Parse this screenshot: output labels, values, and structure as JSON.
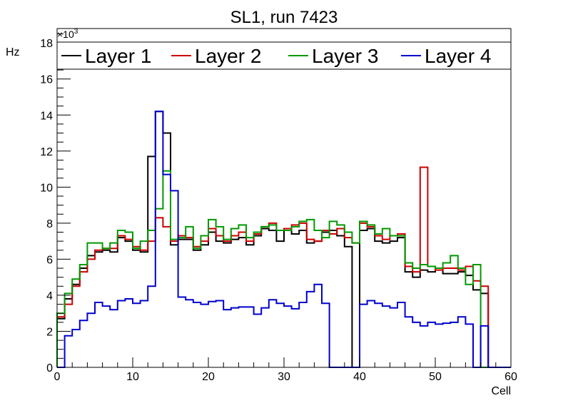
{
  "chart_data": {
    "type": "line",
    "title": "SL1, run 7423",
    "xlabel": "Cell",
    "ylabel": "Hz",
    "y_multiplier": "×10",
    "y_multiplier_exponent": "3",
    "xlim": [
      0,
      60
    ],
    "ylim": [
      0,
      18.8
    ],
    "x_ticks": [
      0,
      10,
      20,
      30,
      40,
      50,
      60
    ],
    "x_tick_labels": [
      "0",
      "10",
      "20",
      "30",
      "40",
      "50",
      "60"
    ],
    "y_ticks": [
      0,
      2,
      4,
      6,
      8,
      10,
      12,
      14,
      16,
      18
    ],
    "y_tick_labels": [
      "0",
      "2",
      "4",
      "6",
      "8",
      "10",
      "12",
      "14",
      "16",
      "18"
    ],
    "grid": false,
    "legend_position": "top",
    "bins": {
      "start": 0,
      "width": 1,
      "count": 60
    },
    "series": [
      {
        "name": "Layer 1",
        "color": "#000000",
        "values": [
          2.7,
          3.8,
          4.6,
          5.5,
          6.2,
          6.4,
          6.5,
          6.4,
          7.2,
          7.0,
          6.5,
          6.4,
          11.7,
          14.2,
          13.0,
          6.8,
          7.1,
          7.1,
          6.5,
          6.8,
          7.5,
          7.0,
          6.9,
          7.1,
          7.2,
          6.8,
          7.3,
          7.7,
          7.6,
          7.0,
          7.6,
          7.4,
          7.6,
          6.9,
          7.0,
          7.5,
          7.6,
          7.3,
          6.7,
          0,
          7.6,
          7.7,
          7.0,
          6.9,
          7.0,
          7.2,
          5.3,
          5.0,
          5.4,
          5.3,
          5.5,
          5.2,
          5.2,
          5.3,
          5.1,
          4.3,
          4.1,
          0,
          0,
          0
        ]
      },
      {
        "name": "Layer 2",
        "color": "#cc0000",
        "values": [
          2.8,
          3.5,
          4.5,
          5.3,
          6.0,
          6.5,
          6.6,
          6.6,
          7.3,
          7.1,
          6.7,
          6.5,
          7.0,
          8.3,
          7.8,
          7.0,
          7.3,
          7.2,
          6.7,
          7.0,
          7.7,
          7.3,
          7.0,
          7.3,
          7.5,
          7.0,
          7.4,
          7.8,
          8.0,
          7.6,
          7.7,
          7.9,
          8.0,
          7.1,
          7.0,
          7.6,
          7.4,
          7.7,
          7.2,
          6.9,
          8.0,
          7.8,
          7.3,
          7.1,
          7.3,
          7.4,
          5.6,
          5.3,
          11.1,
          5.6,
          5.4,
          5.5,
          5.5,
          5.4,
          5.6,
          4.8,
          4.5,
          0,
          0,
          0
        ]
      },
      {
        "name": "Layer 3",
        "color": "#009900",
        "values": [
          3.0,
          4.1,
          4.9,
          5.7,
          6.9,
          6.9,
          6.6,
          6.9,
          7.6,
          7.5,
          6.6,
          7.0,
          7.6,
          8.8,
          10.9,
          7.1,
          7.2,
          7.8,
          6.6,
          7.3,
          8.2,
          7.8,
          7.1,
          7.7,
          7.9,
          7.2,
          7.5,
          7.8,
          7.9,
          7.6,
          7.6,
          7.8,
          8.1,
          8.2,
          7.6,
          7.2,
          8.1,
          7.9,
          7.5,
          6.9,
          8.1,
          7.9,
          7.4,
          7.7,
          7.3,
          7.3,
          5.8,
          5.5,
          5.7,
          5.6,
          5.5,
          5.8,
          6.2,
          5.5,
          4.6,
          5.7,
          0,
          0,
          0,
          0
        ]
      },
      {
        "name": "Layer 4",
        "color": "#0000cc",
        "values": [
          0,
          1.75,
          2.1,
          2.6,
          3.0,
          3.6,
          3.4,
          3.2,
          3.7,
          3.8,
          3.55,
          3.7,
          4.5,
          14.2,
          10.7,
          9.8,
          3.9,
          3.75,
          3.6,
          3.5,
          3.65,
          3.7,
          3.2,
          3.3,
          3.35,
          3.35,
          2.95,
          3.3,
          3.75,
          3.55,
          3.4,
          3.25,
          3.6,
          4.2,
          4.6,
          3.55,
          0,
          0,
          0,
          0,
          3.5,
          3.7,
          3.55,
          3.4,
          3.3,
          3.6,
          2.8,
          2.5,
          2.3,
          2.5,
          2.4,
          2.45,
          2.5,
          2.8,
          2.4,
          0,
          2.3,
          0,
          0,
          0
        ]
      }
    ]
  }
}
